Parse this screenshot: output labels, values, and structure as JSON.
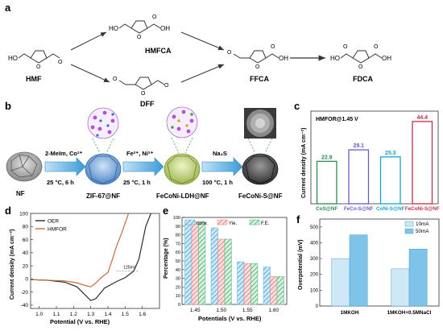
{
  "panel_labels": {
    "a": "a",
    "b": "b",
    "c": "c",
    "d": "d",
    "e": "e",
    "f": "f"
  },
  "scheme": {
    "molecules": {
      "hmf": "HMF",
      "hmfca": "HMFCA",
      "dff": "DFF",
      "ffca": "FFCA",
      "fdca": "FDCA"
    },
    "atoms": {
      "ho": "HO",
      "oh": "OH",
      "o": "O"
    }
  },
  "synthesis": {
    "steps": [
      {
        "top": "2-MeIm, Co²⁺",
        "bottom": "25 °C, 6 h"
      },
      {
        "top": "Fe²⁺, Ni²⁺",
        "bottom": "25 °C, 1 h"
      },
      {
        "top": "Na₂S",
        "bottom": "100 °C, 1 h"
      }
    ],
    "materials": [
      "NF",
      "ZIF-67@NF",
      "FeCoNi-LDH@NF",
      "FeCoNi-S@NF"
    ]
  },
  "chart_data": [
    {
      "panel": "c",
      "type": "bar",
      "annotation": "HMFOR@1.45 V",
      "ylabel": "Current density (mA cm⁻²)",
      "categories": [
        "CoS@NF",
        "FeCo-S@NF",
        "CoNi-S@NF",
        "FeCoNi-S@NF"
      ],
      "values": [
        22.9,
        29.1,
        25.3,
        44.4
      ],
      "value_labels": [
        "22.9",
        "29.1",
        "25.3",
        "44.4"
      ],
      "colors": [
        "#2e8b57",
        "#6a5acd",
        "#1aa3c8",
        "#c0304a"
      ],
      "ylim": [
        0,
        50
      ]
    },
    {
      "panel": "d",
      "type": "line",
      "xlabel": "Potential (V vs. RHE)",
      "ylabel": "Current density (mA cm⁻²)",
      "xlim": [
        0.95,
        1.7
      ],
      "ylim": [
        -45,
        100
      ],
      "xticks": [
        "1.0",
        "1.1",
        "1.2",
        "1.3",
        "1.4",
        "1.5",
        "1.6"
      ],
      "yticks": [
        "-40",
        "-20",
        "0",
        "20",
        "40",
        "60",
        "80",
        "100"
      ],
      "annotation": "125mV",
      "series": [
        {
          "name": "OER",
          "color": "#2b2b2b",
          "x": [
            0.95,
            1.05,
            1.15,
            1.22,
            1.27,
            1.3,
            1.33,
            1.38,
            1.45,
            1.5,
            1.55,
            1.58,
            1.6,
            1.62,
            1.65
          ],
          "y": [
            -1,
            -2,
            -5,
            -12,
            -25,
            -33,
            -30,
            -14,
            -4,
            2,
            12,
            30,
            55,
            80,
            100
          ]
        },
        {
          "name": "HMFOR",
          "color": "#c96a3c",
          "x": [
            0.95,
            1.05,
            1.15,
            1.22,
            1.27,
            1.3,
            1.33,
            1.36,
            1.4,
            1.42,
            1.45,
            1.48,
            1.5,
            1.52
          ],
          "y": [
            -1,
            -2,
            -3,
            -6,
            -10,
            -12,
            -6,
            2,
            10,
            25,
            50,
            70,
            85,
            100
          ]
        }
      ]
    },
    {
      "panel": "e",
      "type": "bar",
      "xlabel": "Potentials (V vs. RHE)",
      "ylabel": "Percentage (%)",
      "categories": [
        "1.45",
        "1.50",
        "1.55",
        "1.60"
      ],
      "ylim": [
        0,
        100
      ],
      "yticks": [
        "0",
        "10",
        "20",
        "30",
        "40",
        "50",
        "60",
        "70",
        "80",
        "90",
        "100"
      ],
      "series": [
        {
          "name": "conv.",
          "color": "#5bb8e8",
          "values": [
            95,
            88,
            49,
            43
          ]
        },
        {
          "name": "Yie.",
          "color": "#f08a8a",
          "values": [
            95,
            75,
            47,
            32
          ]
        },
        {
          "name": "F.E.",
          "color": "#5fbf7f",
          "values": [
            95,
            75,
            47,
            32
          ]
        }
      ]
    },
    {
      "panel": "f",
      "type": "bar",
      "ylabel": "Overpotential (mV)",
      "categories": [
        "1MKOH",
        "1MKOH+0.5MNaCl"
      ],
      "ylim": [
        0,
        550
      ],
      "yticks": [
        "0",
        "100",
        "200",
        "300",
        "400",
        "500"
      ],
      "series": [
        {
          "name": "10mA",
          "color": "#cfe8f6",
          "values": [
            300,
            235
          ]
        },
        {
          "name": "50mA",
          "color": "#7fc3e8",
          "values": [
            450,
            360
          ]
        }
      ]
    }
  ]
}
